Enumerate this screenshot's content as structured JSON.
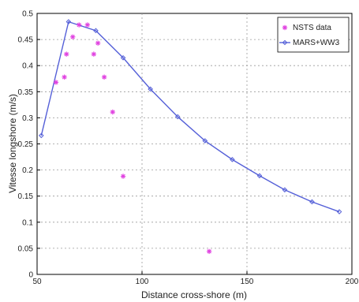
{
  "chart_data": {
    "type": "scatter",
    "xlabel": "Distance cross-shore (m)",
    "ylabel": "Vitesse longshore (m/s)",
    "xlim": [
      50,
      200
    ],
    "ylim": [
      0,
      0.5
    ],
    "xticks": [
      50,
      100,
      150,
      200
    ],
    "yticks": [
      0,
      0.05,
      0.1,
      0.15,
      0.2,
      0.25,
      0.3,
      0.35,
      0.4,
      0.45,
      0.5
    ],
    "grid": true,
    "legend_position": "top-right",
    "series": [
      {
        "name": "NSTS data",
        "style": "markers",
        "marker": "*",
        "color": "#e040e0",
        "x": [
          59,
          63,
          64,
          67,
          70,
          74,
          77,
          79,
          82,
          86,
          91,
          132
        ],
        "y": [
          0.368,
          0.378,
          0.422,
          0.455,
          0.478,
          0.478,
          0.422,
          0.443,
          0.378,
          0.311,
          0.188,
          0.044
        ]
      },
      {
        "name": "MARS+WW3",
        "style": "line",
        "marker": "diamond",
        "color": "#5560d8",
        "x": [
          52,
          65,
          78,
          91,
          104,
          117,
          130,
          143,
          156,
          168,
          181,
          194
        ],
        "y": [
          0.266,
          0.484,
          0.467,
          0.415,
          0.355,
          0.302,
          0.256,
          0.22,
          0.189,
          0.162,
          0.139,
          0.12
        ]
      }
    ]
  }
}
